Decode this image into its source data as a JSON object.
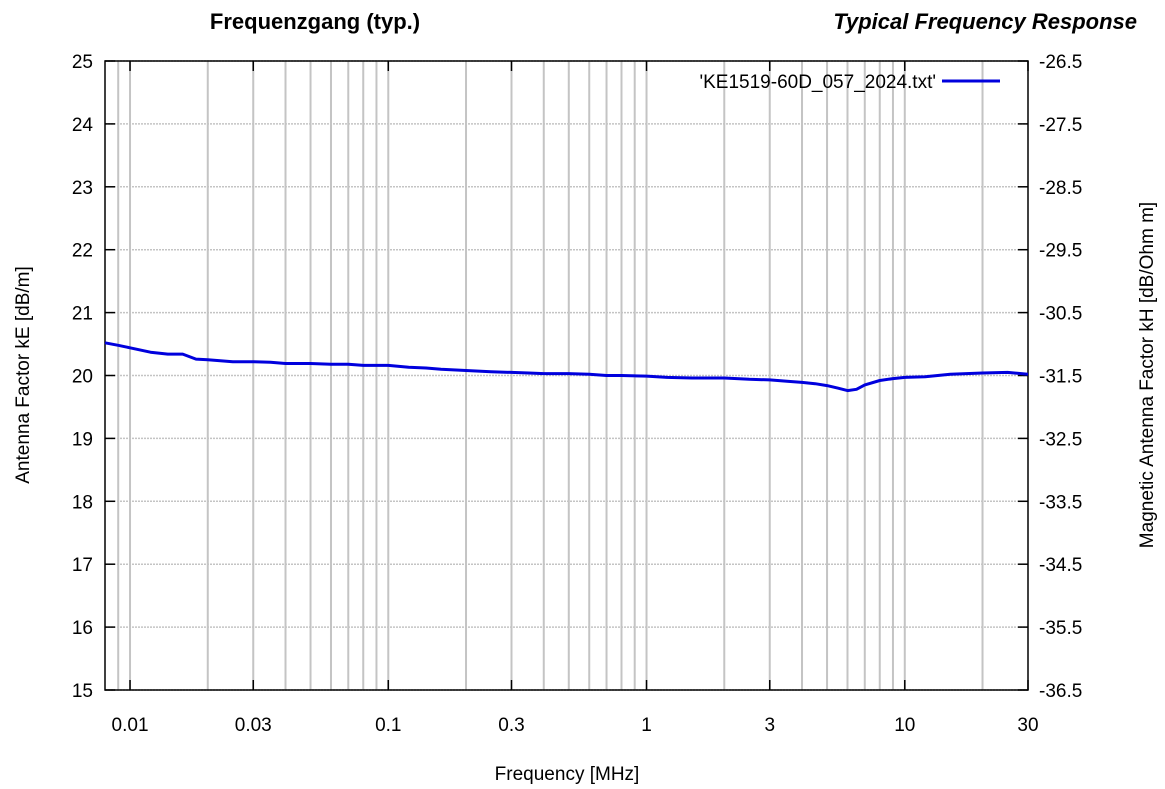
{
  "titles": {
    "left": "Frequenzgang (typ.)",
    "right": "Typical Frequency Response"
  },
  "chart_data": {
    "type": "line",
    "xlabel": "Frequency [MHz]",
    "ylabel_left": "Antenna Factor kE [dB/m]",
    "ylabel_right": "Magnetic Antenna Factor kH [dB/Ohm m]",
    "xscale": "log",
    "xlim": [
      0.008,
      30
    ],
    "ylim_left": [
      15,
      25
    ],
    "ylim_right": [
      -36.5,
      -26.5
    ],
    "x_ticks": [
      {
        "value": 0.01,
        "label": "0.01"
      },
      {
        "value": 0.03,
        "label": "0.03"
      },
      {
        "value": 0.1,
        "label": "0.1"
      },
      {
        "value": 0.3,
        "label": "0.3"
      },
      {
        "value": 1,
        "label": "1"
      },
      {
        "value": 3,
        "label": "3"
      },
      {
        "value": 10,
        "label": "10"
      },
      {
        "value": 30,
        "label": "30"
      }
    ],
    "y_ticks_left": [
      "15",
      "16",
      "17",
      "18",
      "19",
      "20",
      "21",
      "22",
      "23",
      "24",
      "25"
    ],
    "y_ticks_right": [
      "-36.5",
      "-35.5",
      "-34.5",
      "-33.5",
      "-32.5",
      "-31.5",
      "-30.5",
      "-29.5",
      "-28.5",
      "-27.5",
      "-26.5"
    ],
    "grid": true,
    "legend_position": "top-right",
    "series": [
      {
        "name": "'KE1519-60D_057_2024.txt'",
        "color": "#0000dd",
        "x": [
          0.008,
          0.009,
          0.01,
          0.012,
          0.014,
          0.016,
          0.018,
          0.02,
          0.025,
          0.03,
          0.035,
          0.04,
          0.05,
          0.06,
          0.07,
          0.08,
          0.1,
          0.12,
          0.14,
          0.16,
          0.2,
          0.25,
          0.3,
          0.35,
          0.4,
          0.5,
          0.6,
          0.7,
          0.8,
          1,
          1.2,
          1.5,
          2,
          2.5,
          3,
          3.5,
          4,
          4.5,
          5,
          5.5,
          6,
          6.5,
          7,
          8,
          9,
          10,
          12,
          15,
          20,
          25,
          30
        ],
        "y": [
          20.52,
          20.48,
          20.44,
          20.37,
          20.34,
          20.34,
          20.26,
          20.25,
          20.22,
          20.22,
          20.21,
          20.19,
          20.19,
          20.18,
          20.18,
          20.16,
          20.16,
          20.13,
          20.12,
          20.1,
          20.08,
          20.06,
          20.05,
          20.04,
          20.03,
          20.03,
          20.02,
          20.0,
          20.0,
          19.99,
          19.97,
          19.96,
          19.96,
          19.94,
          19.93,
          19.91,
          19.89,
          19.87,
          19.84,
          19.8,
          19.76,
          19.78,
          19.85,
          19.92,
          19.95,
          19.97,
          19.98,
          20.02,
          20.04,
          20.05,
          20.02
        ]
      }
    ]
  }
}
